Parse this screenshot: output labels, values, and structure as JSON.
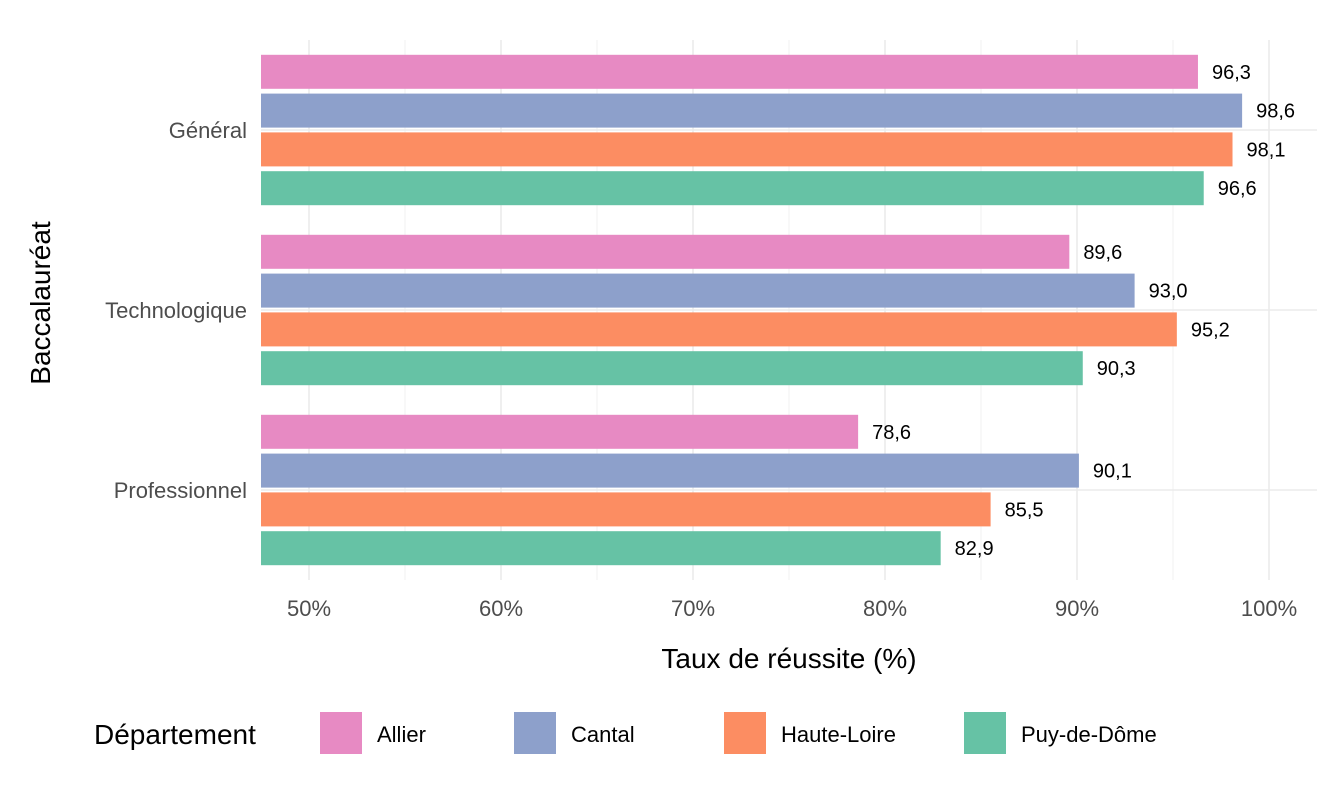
{
  "chart_data": {
    "type": "bar",
    "orientation": "horizontal",
    "categories": [
      "Général",
      "Technologique",
      "Professionnel"
    ],
    "series": [
      {
        "name": "Allier",
        "color": "#e78ac3",
        "values": [
          96.3,
          89.6,
          78.6
        ]
      },
      {
        "name": "Cantal",
        "color": "#8da0cb",
        "values": [
          98.6,
          93.0,
          90.1
        ]
      },
      {
        "name": "Haute-Loire",
        "color": "#fc8d62",
        "values": [
          98.1,
          95.2,
          85.5
        ]
      },
      {
        "name": "Puy-de-Dôme",
        "color": "#66c2a5",
        "values": [
          96.6,
          90.3,
          82.9
        ]
      }
    ],
    "data_labels": [
      [
        "96,3",
        "89,6",
        "78,6"
      ],
      [
        "98,6",
        "93,0",
        "90,1"
      ],
      [
        "98,1",
        "95,2",
        "85,5"
      ],
      [
        "96,6",
        "90,3",
        "82,9"
      ]
    ],
    "xlabel": "Taux de réussite (%)",
    "ylabel": "Baccalauréat",
    "xlim": [
      47.5,
      102.5
    ],
    "x_ticks": [
      50,
      60,
      70,
      80,
      90,
      100
    ],
    "x_tick_labels": [
      "50%",
      "60%",
      "70%",
      "80%",
      "90%",
      "100%"
    ],
    "legend_title": "Département",
    "legend_position": "bottom",
    "grid": true
  }
}
